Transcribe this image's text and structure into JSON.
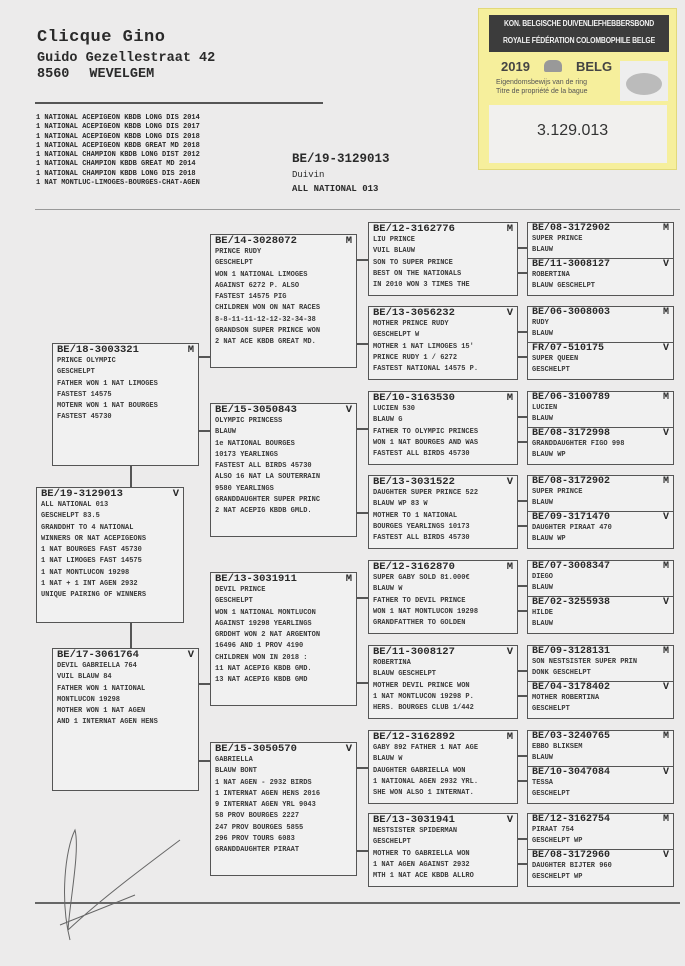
{
  "owner": {
    "name": "Clicque Gino",
    "street": "Guido Gezellestraat 42",
    "postcode": "8560",
    "city": "WEVELGEM"
  },
  "achievements": [
    "1 NATIONAL ACEPIGEON KBDB LONG DIS 2014",
    "1 NATIONAL ACEPIGEON KBDB LONG DIS 2017",
    "1 NATIONAL ACEPIGEON KBDB LONG DIS 2018",
    "1 NATIONAL ACEPIGEON KBDB GREAT MD 2018",
    "1 NATIONAL CHAMPION KBDB LONG DIST 2012",
    "1 NATIONAL CHAMPION KBDB GREAT MD  2014",
    "1 NATIONAL CHAMPION KBDB LONG DIS  2018",
    "1 NAT MONTLUC-LIMOGES-BOURGES-CHAT-AGEN"
  ],
  "main": {
    "ring": "BE/19-3129013",
    "sex": "Duivin",
    "name": "ALL NATIONAL 013"
  },
  "ring_card": {
    "header_nl": "KON. BELGISCHE DUIVENLIEFHEBBERSBOND",
    "header_fr": "ROYALE FÉDÉRATION COLOMBOPHILE BELGE",
    "year": "2019",
    "country": "BELG",
    "text_nl": "Eigendomsbewijs van de ring",
    "text_fr": "Titre de propriété de la bague",
    "number": "3.129.013",
    "bg_color": "#f6ef9c"
  },
  "pedigree": {
    "subject": {
      "ring": "BE/19-3129013",
      "sex": "V",
      "lines": [
        "ALL NATIONAL 013",
        "GESCHELPT 83.5",
        "GRANDDHT TO 4 NATIONAL",
        "WINNERS OR NAT ACEPIGEONS",
        "1 NAT BOURGES FAST 45730",
        "1 NAT LIMOGES FAST 14575",
        "1 NAT MONTLUCON 19298",
        "1 NAT + 1 INT AGEN 2932",
        "UNIQUE PAIRING OF WINNERS"
      ]
    },
    "gen1": [
      {
        "ring": "BE/18-3003321",
        "sex": "M",
        "lines": [
          "PRINCE OLYMPIC",
          "GESCHELPT",
          "FATHER WON 1 NAT LIMOGES",
          "FASTEST 14575",
          "MOTENR WON 1 NAT BOURGES",
          "FASTEST 45730"
        ]
      },
      {
        "ring": "BE/17-3061764",
        "sex": "V",
        "lines": [
          "DEVIL GABRIELLA 764",
          "VUIL BLAUW  84",
          "FATHER WON 1 NATIONAL",
          "MONTLUCON 19298",
          "MOTHER WON 1 NAT AGEN",
          "AND 1 INTERNAT AGEN HENS"
        ]
      }
    ],
    "gen2": [
      {
        "ring": "BE/14-3028072",
        "sex": "M",
        "lines": [
          "PRINCE RUDY",
          "GESCHELPT",
          "WON 1 NATIONAL LIMOGES",
          "AGAINST 6272 P. ALSO",
          "FASTEST 14575 PIG",
          "CHILDREN WON ON NAT RACES",
          "8-8-11-11-12-12-32-34-38",
          "GRANDSON SUPER PRINCE WON",
          "2 NAT ACE KBDB GREAT MD."
        ]
      },
      {
        "ring": "BE/15-3050843",
        "sex": "V",
        "lines": [
          "OLYMPIC PRINCESS",
          "BLAUW",
          "1e NATIONAL BOURGES",
          "10173 YEARLINGS",
          "FASTEST ALL BIRDS 45730",
          "ALSO 16 NAT LA SOUTERRAIN",
          "9580 YEARLINGS",
          "GRANDDAUGHTER SUPER PRINC",
          "2 NAT ACEPIG KBDB GMLD."
        ]
      },
      {
        "ring": "BE/13-3031911",
        "sex": "M",
        "lines": [
          "DEVIL PRINCE",
          "GESCHELPT",
          "WON 1 NATIONAL MONTLUCON",
          "AGAINST 19298 YEARLINGS",
          "GRDDHT WON 2 NAT ARGENTON",
          "16496 AND 1 PROV 4190",
          "CHILDREN WON IN 2018 :",
          "11 NAT ACEPIG KBDB GMD.",
          "13 NAT ACEPIG KBDB GMD"
        ]
      },
      {
        "ring": "BE/15-3050570",
        "sex": "V",
        "lines": [
          "GABRIELLA",
          "BLAUW BONT",
          "1 NAT AGEN - 2932 BIRDS",
          "1 INTERNAT AGEN HENS 2016",
          "9 INTERNAT AGEN YRL 9043",
          "58 PROV BOURGES 2227",
          "247 PROV BOURGES 5855",
          "296 PROV TOURS 6083",
          "GRANDDAUGHTER PIRAAT"
        ]
      }
    ],
    "gen3": [
      {
        "ring": "BE/12-3162776",
        "sex": "M",
        "lines": [
          "LIU PRINCE",
          "VUIL BLAUW",
          "SON TO SUPER PRINCE",
          "BEST ON THE NATIONALS",
          "IN 2010 WON 3 TIMES THE"
        ]
      },
      {
        "ring": "BE/13-3056232",
        "sex": "V",
        "lines": [
          "MOTHER PRINCE RUDY",
          "GESCHELPT W",
          "MOTHER 1 NAT LIMOGES  15'",
          "PRINCE RUDY 1 / 6272",
          "FASTEST NATIONAL 14575 P."
        ]
      },
      {
        "ring": "BE/10-3163530",
        "sex": "M",
        "lines": [
          "LUCIEN 530",
          "BLAUW G",
          "FATHER TO OLYMPIC PRINCES",
          "WON 1 NAT BOURGES AND WAS",
          "FASTEST ALL BIRDS 45730"
        ]
      },
      {
        "ring": "BE/13-3031522",
        "sex": "V",
        "lines": [
          "DAUGHTER SUPER PRINCE 522",
          "BLAUW WP 83 W",
          "MOTHER TO 1 NATIONAL",
          "BOURGES YEARLINGS 10173",
          "FASTEST ALL BIRDS 45730"
        ]
      },
      {
        "ring": "BE/12-3162870",
        "sex": "M",
        "lines": [
          "SUPER GABY SOLD 81.000€",
          "BLAUW W",
          "FATHER TO DEVIL PRINCE",
          "WON 1 NAT MONTLUCON 19298",
          "GRANDFATTHER TO GOLDEN"
        ]
      },
      {
        "ring": "BE/11-3008127",
        "sex": "V",
        "lines": [
          "ROBERTINA",
          "BLAUW GESCHELPT",
          "MOTHER DEVIL PRINCE WON",
          "1 NAT MONTLUCON 19298 P.",
          "HERS. BOURGES CLUB 1/442"
        ]
      },
      {
        "ring": "BE/12-3162892",
        "sex": "M",
        "lines": [
          "GABY 892 FATHER 1 NAT AGE",
          "BLAUW W",
          "DAUGHTER GABRIELLA WON",
          "1 NATIONAL AGEN 2932 YRL.",
          "SHE WON ALSO 1 INTERNAT."
        ]
      },
      {
        "ring": "BE/13-3031941",
        "sex": "V",
        "lines": [
          "NESTSISTER SPIDERMAN",
          "GESCHELPT",
          "MOTHER TO GABRIELLA WON",
          "1 NAT AGEN AGAINST 2932",
          "MTH 1 NAT ACE KBDB ALLRO"
        ]
      }
    ],
    "gen4": [
      {
        "ring": "BE/08-3172902",
        "sex": "M",
        "lines": [
          "SUPER PRINCE",
          "BLAUW"
        ]
      },
      {
        "ring": "BE/11-3008127",
        "sex": "V",
        "lines": [
          "ROBERTINA",
          "BLAUW GESCHELPT"
        ]
      },
      {
        "ring": "BE/06-3008003",
        "sex": "M",
        "lines": [
          "RUDY",
          "BLAUW"
        ]
      },
      {
        "ring": "FR/07-510175",
        "sex": "V",
        "lines": [
          "SUPER QUEEN",
          "GESCHELPT"
        ]
      },
      {
        "ring": "BE/06-3100789",
        "sex": "M",
        "lines": [
          "LUCIEN",
          "BLAUW"
        ]
      },
      {
        "ring": "BE/08-3172998",
        "sex": "V",
        "lines": [
          "GRANDDAUGHTER FIGO 998",
          "BLAUW WP"
        ]
      },
      {
        "ring": "BE/08-3172902",
        "sex": "M",
        "lines": [
          "SUPER PRINCE",
          "BLAUW"
        ]
      },
      {
        "ring": "BE/09-3171470",
        "sex": "V",
        "lines": [
          "DAUGHTER PIRAAT 470",
          "BLAUW WP"
        ]
      },
      {
        "ring": "BE/07-3008347",
        "sex": "M",
        "lines": [
          "DIEGO",
          "BLAUW"
        ]
      },
      {
        "ring": "BE/02-3255938",
        "sex": "V",
        "lines": [
          "HILDE",
          "BLAUW"
        ]
      },
      {
        "ring": "BE/09-3128131",
        "sex": "M",
        "lines": [
          "SON NESTSISTER SUPER PRIN",
          "DONK GESCHELPT"
        ]
      },
      {
        "ring": "BE/04-3178402",
        "sex": "V",
        "lines": [
          "MOTHER ROBERTINA",
          "GESCHELPT"
        ]
      },
      {
        "ring": "BE/03-3240765",
        "sex": "M",
        "lines": [
          "EBBO BLIKSEM",
          "BLAUW"
        ]
      },
      {
        "ring": "BE/10-3047084",
        "sex": "V",
        "lines": [
          "TESSA",
          "GESCHELPT"
        ]
      },
      {
        "ring": "BE/12-3162754",
        "sex": "M",
        "lines": [
          "PIRAAT 754",
          "GESCHELPT WP"
        ]
      },
      {
        "ring": "BE/08-3172960",
        "sex": "V",
        "lines": [
          "DAUGHTER BIJTER 960",
          "GESCHELPT WP"
        ]
      }
    ]
  }
}
